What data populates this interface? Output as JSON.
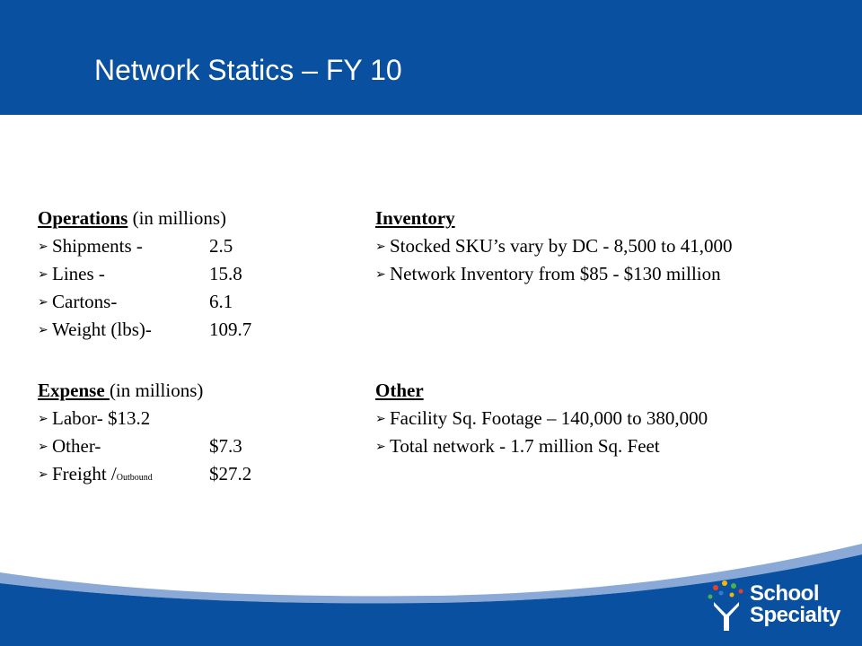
{
  "slide": {
    "title": "Network Statics – FY 10"
  },
  "operations": {
    "heading": "Operations",
    "heading_suffix": " (in  millions)",
    "items": [
      {
        "label": "Shipments -",
        "value": "2.5"
      },
      {
        "label": "Lines -",
        "value": "15.8"
      },
      {
        "label": "Cartons-",
        "value": "6.1"
      },
      {
        "label": "Weight (lbs)-",
        "value": "109.7"
      }
    ]
  },
  "expense": {
    "heading": "Expense ",
    "heading_suffix": "(in millions)",
    "items": [
      {
        "label": "Labor-  $13.2",
        "value": ""
      },
      {
        "label": "Other-",
        "value": "$7.3"
      },
      {
        "label": "Freight /",
        "sub": "Outbound",
        "value": "$27.2"
      }
    ]
  },
  "inventory": {
    "heading": "Inventory",
    "items": [
      "Stocked SKU’s vary by DC - 8,500 to 41,000",
      "Network Inventory from $85 - $130 million"
    ]
  },
  "other": {
    "heading": "Other",
    "items": [
      "Facility Sq. Footage – 140,000 to 380,000",
      "Total network  - 1.7 million Sq. Feet"
    ]
  },
  "logo": {
    "line1": "School",
    "line2": "Specialty"
  },
  "colors": {
    "header": "#0a50a0",
    "wave": "#0a50a0",
    "wave_light": "#8aa9d6"
  }
}
